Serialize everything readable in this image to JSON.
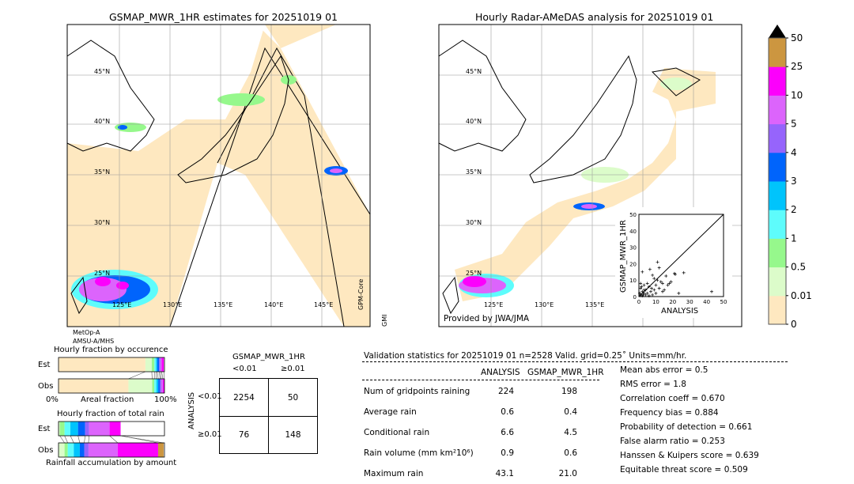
{
  "left_map": {
    "title": "GSMAP_MWR_1HR estimates for 20251019 01",
    "lat_labels": [
      "45°N",
      "40°N",
      "35°N",
      "30°N",
      "25°N"
    ],
    "lon_labels": [
      "125°E",
      "130°E",
      "135°E",
      "140°E",
      "145°E"
    ],
    "sensor_bottom": [
      "MetOp-A",
      "AMSU-A/MHS"
    ],
    "sensor_right": [
      "GPM-Core",
      "GMI"
    ]
  },
  "right_map": {
    "title": "Hourly Radar-AMeDAS analysis for 20251019 01",
    "lat_labels": [
      "45°N",
      "40°N",
      "35°N",
      "30°N",
      "25°N"
    ],
    "lon_labels": [
      "125°E",
      "130°E",
      "135°E"
    ],
    "credit": "Provided by JWA/JMA"
  },
  "colorbar": {
    "ticks": [
      "0",
      "0.01",
      "0.5",
      "1",
      "2",
      "3",
      "4",
      "5",
      "10",
      "25",
      "50"
    ],
    "colors": [
      "#fee8c0",
      "#dcfcca",
      "#96f88c",
      "#5efcfc",
      "#00c4fc",
      "#0064fc",
      "#9664fc",
      "#dc64fc",
      "#fc00fc",
      "#cc9640"
    ],
    "extend_color": "#000000"
  },
  "chart_data": [
    {
      "type": "scatter",
      "xlabel": "ANALYSIS",
      "ylabel": "GSMAP_MWR_1HR",
      "xlim": [
        0,
        50
      ],
      "ylim": [
        0,
        50
      ],
      "xticks": [
        "0",
        "10",
        "20",
        "30",
        "40",
        "50"
      ],
      "yticks": [
        "0",
        "10",
        "20",
        "30",
        "40",
        "50"
      ],
      "diagonal": true,
      "points": [
        [
          1,
          1
        ],
        [
          2,
          3
        ],
        [
          3,
          2
        ],
        [
          1,
          5
        ],
        [
          4,
          4
        ],
        [
          2,
          0.5
        ],
        [
          5,
          2
        ],
        [
          6,
          6
        ],
        [
          3,
          7
        ],
        [
          1,
          8
        ],
        [
          2,
          15
        ],
        [
          6.5,
          16.5
        ],
        [
          11,
          21
        ],
        [
          12,
          17.5
        ],
        [
          8,
          13
        ],
        [
          9,
          11
        ],
        [
          10,
          7
        ],
        [
          12,
          5
        ],
        [
          14,
          3
        ],
        [
          15,
          4
        ],
        [
          16,
          12.5
        ],
        [
          17,
          7
        ],
        [
          18,
          8
        ],
        [
          19,
          9
        ],
        [
          21,
          14
        ],
        [
          21.5,
          13.5
        ],
        [
          26.5,
          14.5
        ],
        [
          23.5,
          2
        ],
        [
          43,
          3
        ],
        [
          7,
          3
        ],
        [
          8,
          1
        ],
        [
          9,
          4
        ],
        [
          13,
          9
        ],
        [
          4,
          1
        ],
        [
          5,
          8
        ],
        [
          3,
          4
        ],
        [
          0.5,
          2
        ],
        [
          1.5,
          6
        ],
        [
          2.5,
          1
        ],
        [
          6,
          0.5
        ],
        [
          7.5,
          5
        ],
        [
          10,
          2
        ],
        [
          11,
          10
        ],
        [
          14,
          8
        ]
      ]
    },
    {
      "type": "bar",
      "title": "Hourly fraction by occurence",
      "xlabel": "Areal fraction",
      "x_tick_labels": [
        "0%",
        "100%"
      ],
      "categories": [
        "Est",
        "Obs"
      ],
      "stacked_percent": [
        [
          82,
          6,
          2.5,
          1.5,
          1.2,
          1.8,
          1.2,
          1.2,
          2
        ],
        [
          66,
          22.4,
          2,
          2,
          1.7,
          1.7,
          1.2,
          1.5,
          1.3
        ]
      ],
      "colors": [
        "#fee8c0",
        "#dcfcca",
        "#96f88c",
        "#5efcfc",
        "#00c4fc",
        "#0064fc",
        "#9664fc",
        "#dc64fc",
        "#fc00fc"
      ]
    },
    {
      "type": "bar",
      "title": "Hourly fraction of total rain",
      "xlabel": "Rainfall accumulation by amount",
      "categories": [
        "Est",
        "Obs"
      ],
      "stacked_percent": [
        [
          1.2,
          4.5,
          5.5,
          7.2,
          6.7,
          3.7,
          19.4,
          10.4,
          0
        ],
        [
          5.7,
          3.0,
          5.7,
          5.7,
          4.2,
          4.0,
          27.6,
          38.1,
          5.2
        ]
      ],
      "colors": [
        "#dcfcca",
        "#96f88c",
        "#5efcfc",
        "#00c4fc",
        "#0064fc",
        "#9664fc",
        "#dc64fc",
        "#fc00fc",
        "#cc9640"
      ]
    }
  ],
  "contingency": {
    "title": "GSMAP_MWR_1HR",
    "col_labels": [
      "<0.01",
      "≥0.01"
    ],
    "row_axis": "ANALYSIS",
    "row_labels": [
      "<0.01",
      "≥0.01"
    ],
    "cells": [
      [
        "2254",
        "50"
      ],
      [
        "76",
        "148"
      ]
    ]
  },
  "stats": {
    "header": "Validation statistics for 20251019 01  n=2528 Valid. grid=0.25˚ Units=mm/hr.",
    "col_headers": [
      "ANALYSIS",
      "GSMAP_MWR_1HR"
    ],
    "rows": [
      {
        "label": "Num of gridpoints raining",
        "a": "224",
        "g": "198"
      },
      {
        "label": "Average rain",
        "a": "0.6",
        "g": "0.4"
      },
      {
        "label": "Conditional rain",
        "a": "6.6",
        "g": "4.5"
      },
      {
        "label": "Rain volume (mm km²10⁶)",
        "a": "0.9",
        "g": "0.6"
      },
      {
        "label": "Maximum rain",
        "a": "43.1",
        "g": "21.0"
      }
    ],
    "scores": [
      "Mean abs error =    0.5",
      "RMS error =    1.8",
      "Correlation coeff =  0.670",
      "Frequency bias =  0.884",
      "Probability of detection =  0.661",
      "False alarm ratio =  0.253",
      "Hanssen & Kuipers score =  0.639",
      "Equitable threat score =  0.509"
    ]
  }
}
